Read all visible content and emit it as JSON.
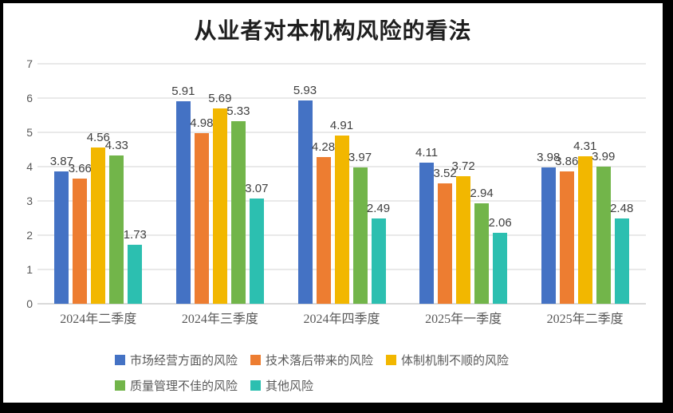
{
  "frame": {
    "border_color": "#000000",
    "canvas_background": "#ffffff"
  },
  "chart_data": {
    "type": "bar",
    "title": "从业者对本机构风险的看法",
    "categories": [
      "2024年二季度",
      "2024年三季度",
      "2024年四季度",
      "2025年一季度",
      "2025年二季度"
    ],
    "series": [
      {
        "key": "market-operation-risk",
        "name": "市场经营方面的风险",
        "color": "#4472C4",
        "values": [
          3.87,
          5.91,
          5.93,
          4.11,
          3.98
        ]
      },
      {
        "key": "tech-lag-risk",
        "name": "技术落后带来的风险",
        "color": "#ED7D31",
        "values": [
          3.66,
          4.98,
          4.28,
          3.52,
          3.86
        ]
      },
      {
        "key": "system-mechanism-risk",
        "name": "体制机制不顺的风险",
        "color": "#F2B700",
        "values": [
          4.56,
          5.69,
          4.91,
          3.72,
          4.31
        ]
      },
      {
        "key": "quality-management-risk",
        "name": "质量管理不佳的风险",
        "color": "#72B54A",
        "values": [
          4.33,
          5.33,
          3.97,
          2.94,
          3.99
        ]
      },
      {
        "key": "other-risk",
        "name": "其他风险",
        "color": "#2CBFB0",
        "values": [
          1.73,
          3.07,
          2.49,
          2.06,
          2.48
        ]
      }
    ],
    "ylim": [
      0,
      7
    ],
    "ytick_step": 1,
    "grid": true,
    "data_labels": true,
    "data_label_decimals": 2,
    "legend_position": "bottom",
    "text_colors": {
      "title": "#1f1f1f",
      "axis": "#595959",
      "data_label": "#3f3f3f"
    }
  }
}
